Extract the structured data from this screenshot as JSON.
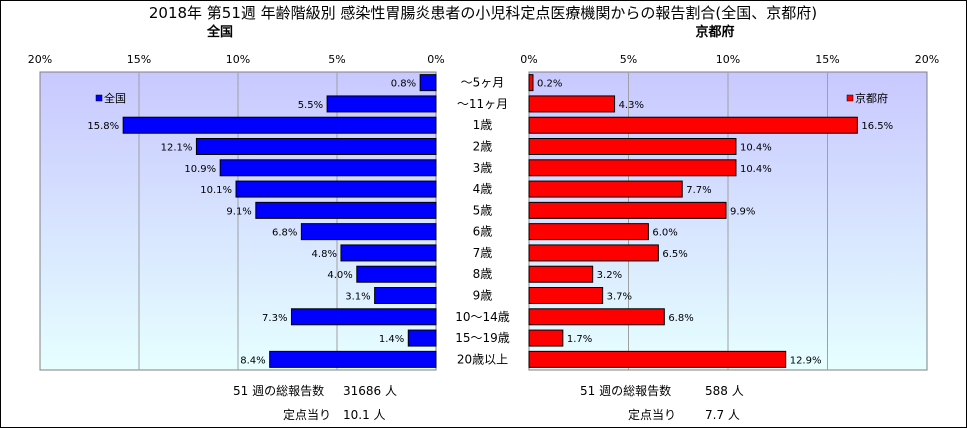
{
  "title": "2018年 第51週 年齢階級別 感染性胃腸炎患者の小児科定点医療機関からの報告割合(全国、京都府)",
  "chart_data": {
    "type": "bar",
    "orientation": "horizontal",
    "categories": [
      "～5ヶ月",
      "～11ヶ月",
      "1歳",
      "2歳",
      "3歳",
      "4歳",
      "5歳",
      "6歳",
      "7歳",
      "8歳",
      "9歳",
      "10～14歳",
      "15～19歳",
      "20歳以上"
    ],
    "xlim": [
      0,
      20
    ],
    "xticks": [
      "20%",
      "15%",
      "10%",
      "5%",
      "0%"
    ],
    "xticks_right": [
      "0%",
      "5%",
      "10%",
      "15%",
      "20%"
    ],
    "grid": true,
    "series": [
      {
        "name": "全国",
        "panel_title": "全国",
        "color": "#0000ff",
        "values": [
          0.8,
          5.5,
          15.8,
          12.1,
          10.9,
          10.1,
          9.1,
          6.8,
          4.8,
          4.0,
          3.1,
          7.3,
          1.4,
          8.4
        ],
        "labels": [
          "0.8%",
          "5.5%",
          "15.8%",
          "12.1%",
          "10.9%",
          "10.1%",
          "9.1%",
          "6.8%",
          "4.8%",
          "4.0%",
          "3.1%",
          "7.3%",
          "1.4%",
          "8.4%"
        ],
        "legend": "全国",
        "legend_position": "top-left"
      },
      {
        "name": "京都府",
        "panel_title": "京都府",
        "color": "#ff0000",
        "values": [
          0.2,
          4.3,
          16.5,
          10.4,
          10.4,
          7.7,
          9.9,
          6.0,
          6.5,
          3.2,
          3.7,
          6.8,
          1.7,
          12.9
        ],
        "labels": [
          "0.2%",
          "4.3%",
          "16.5%",
          "10.4%",
          "10.4%",
          "7.7%",
          "9.9%",
          "6.0%",
          "6.5%",
          "3.2%",
          "3.7%",
          "6.8%",
          "1.7%",
          "12.9%"
        ],
        "legend": "京都府",
        "legend_position": "top-right"
      }
    ]
  },
  "footer": {
    "national": {
      "total_label": "51 週の総報告数",
      "total_value": "31686 人",
      "per_label": "定点当り",
      "per_value": "10.1 人"
    },
    "kyoto": {
      "total_label": "51 週の総報告数",
      "total_value": "588 人",
      "per_label": "定点当り",
      "per_value": "7.7 人"
    }
  },
  "colors": {
    "border": "#000000",
    "plot_top": "#c8c8ff",
    "plot_bottom": "#e6ffff"
  }
}
